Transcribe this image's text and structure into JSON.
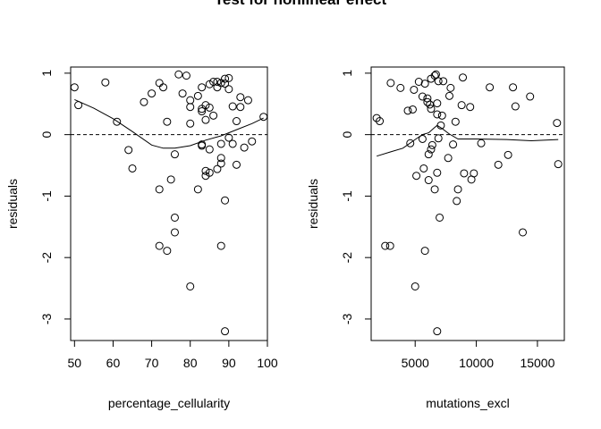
{
  "title": "Test for nonlinear effect",
  "chart_data": [
    {
      "type": "scatter",
      "xlabel": "percentage_cellularity",
      "ylabel": "residuals",
      "xlim": [
        49,
        100
      ],
      "ylim": [
        -3.35,
        1.1
      ],
      "xticks": [
        50,
        60,
        70,
        80,
        90,
        100
      ],
      "yticks": [
        1,
        0,
        -1,
        -2,
        -3
      ],
      "reference_line": 0,
      "points": [
        [
          50,
          0.77
        ],
        [
          51,
          0.48
        ],
        [
          58,
          0.85
        ],
        [
          61,
          0.21
        ],
        [
          64,
          -0.25
        ],
        [
          65,
          -0.55
        ],
        [
          68,
          0.53
        ],
        [
          70,
          0.67
        ],
        [
          72,
          0.84
        ],
        [
          73,
          0.77
        ],
        [
          72,
          -0.89
        ],
        [
          72,
          -1.81
        ],
        [
          74,
          -1.89
        ],
        [
          74,
          0.21
        ],
        [
          75,
          -0.73
        ],
        [
          76,
          -1.35
        ],
        [
          76,
          -1.59
        ],
        [
          76,
          -0.32
        ],
        [
          77,
          0.98
        ],
        [
          78,
          0.67
        ],
        [
          79,
          0.96
        ],
        [
          80,
          0.56
        ],
        [
          80,
          0.45
        ],
        [
          80,
          0.18
        ],
        [
          80,
          -2.47
        ],
        [
          82,
          0.63
        ],
        [
          82,
          -0.89
        ],
        [
          83,
          0.77
        ],
        [
          83,
          0.42
        ],
        [
          83,
          0.38
        ],
        [
          83,
          -0.16
        ],
        [
          83,
          -0.18
        ],
        [
          84,
          0.48
        ],
        [
          84,
          0.24
        ],
        [
          84,
          -0.59
        ],
        [
          84,
          -0.67
        ],
        [
          85,
          0.82
        ],
        [
          85,
          0.44
        ],
        [
          85,
          -0.24
        ],
        [
          85,
          -0.62
        ],
        [
          86,
          0.86
        ],
        [
          86,
          0.31
        ],
        [
          87,
          0.86
        ],
        [
          87,
          0.77
        ],
        [
          87,
          -0.56
        ],
        [
          88,
          0.84
        ],
        [
          88,
          -0.15
        ],
        [
          88,
          -0.38
        ],
        [
          88,
          -0.47
        ],
        [
          88,
          -1.81
        ],
        [
          89,
          0.91
        ],
        [
          89,
          0.83
        ],
        [
          89,
          -1.07
        ],
        [
          89,
          -3.2
        ],
        [
          90,
          0.92
        ],
        [
          90,
          0.74
        ],
        [
          90,
          -0.05
        ],
        [
          91,
          0.46
        ],
        [
          91,
          -0.15
        ],
        [
          92,
          -0.49
        ],
        [
          92,
          0.22
        ],
        [
          93,
          0.61
        ],
        [
          93,
          0.45
        ],
        [
          94,
          -0.21
        ],
        [
          95,
          0.56
        ],
        [
          96,
          -0.11
        ],
        [
          99,
          0.29
        ]
      ],
      "smooth": [
        [
          50,
          0.57
        ],
        [
          55,
          0.43
        ],
        [
          60,
          0.26
        ],
        [
          65,
          0.05
        ],
        [
          70,
          -0.17
        ],
        [
          73,
          -0.22
        ],
        [
          76,
          -0.22
        ],
        [
          80,
          -0.18
        ],
        [
          84,
          -0.09
        ],
        [
          88,
          -0.02
        ],
        [
          92,
          0.08
        ],
        [
          96,
          0.18
        ],
        [
          99,
          0.27
        ]
      ]
    },
    {
      "type": "scatter",
      "xlabel": "mutations_excl",
      "ylabel": "residuals",
      "xlim": [
        1400,
        17200
      ],
      "ylim": [
        -3.35,
        1.1
      ],
      "xticks": [
        5000,
        10000,
        15000
      ],
      "yticks": [
        1,
        0,
        -1,
        -2,
        -3
      ],
      "reference_line": 0,
      "points": [
        [
          1850,
          0.27
        ],
        [
          2100,
          0.22
        ],
        [
          2550,
          -1.81
        ],
        [
          2950,
          -1.81
        ],
        [
          3000,
          0.84
        ],
        [
          3800,
          0.76
        ],
        [
          4400,
          0.39
        ],
        [
          4600,
          -0.14
        ],
        [
          4800,
          0.41
        ],
        [
          4900,
          0.73
        ],
        [
          5100,
          -0.67
        ],
        [
          5000,
          -2.47
        ],
        [
          5300,
          0.86
        ],
        [
          5600,
          0.62
        ],
        [
          5600,
          -0.07
        ],
        [
          5700,
          -0.55
        ],
        [
          5800,
          -1.89
        ],
        [
          5800,
          0.83
        ],
        [
          6000,
          0.59
        ],
        [
          6000,
          0.53
        ],
        [
          6100,
          -0.32
        ],
        [
          6100,
          -0.74
        ],
        [
          6200,
          0.49
        ],
        [
          6300,
          0.91
        ],
        [
          6300,
          0.42
        ],
        [
          6300,
          -0.24
        ],
        [
          6400,
          -0.17
        ],
        [
          6600,
          0.96
        ],
        [
          6600,
          -0.89
        ],
        [
          6700,
          0.98
        ],
        [
          6800,
          -3.2
        ],
        [
          6800,
          -0.62
        ],
        [
          6800,
          0.51
        ],
        [
          6800,
          0.33
        ],
        [
          6900,
          -0.06
        ],
        [
          6900,
          0.87
        ],
        [
          7000,
          -1.35
        ],
        [
          7100,
          0.15
        ],
        [
          7200,
          0.31
        ],
        [
          7300,
          0.87
        ],
        [
          7700,
          -0.38
        ],
        [
          7900,
          0.76
        ],
        [
          7800,
          0.63
        ],
        [
          8100,
          -0.16
        ],
        [
          8300,
          0.21
        ],
        [
          8400,
          -1.08
        ],
        [
          8500,
          -0.89
        ],
        [
          8800,
          0.48
        ],
        [
          8900,
          0.93
        ],
        [
          9000,
          -0.63
        ],
        [
          9600,
          -0.73
        ],
        [
          9500,
          0.45
        ],
        [
          9800,
          -0.63
        ],
        [
          10400,
          -0.14
        ],
        [
          11100,
          0.77
        ],
        [
          11800,
          -0.49
        ],
        [
          12600,
          -0.33
        ],
        [
          13000,
          0.77
        ],
        [
          13200,
          0.46
        ],
        [
          13800,
          -1.59
        ],
        [
          14400,
          0.62
        ],
        [
          16600,
          0.19
        ],
        [
          16700,
          -0.48
        ]
      ],
      "smooth": [
        [
          1850,
          -0.35
        ],
        [
          3000,
          -0.28
        ],
        [
          4000,
          -0.22
        ],
        [
          5000,
          -0.08
        ],
        [
          5600,
          0.0
        ],
        [
          6100,
          0.03
        ],
        [
          6500,
          0.1
        ],
        [
          6800,
          0.15
        ],
        [
          7200,
          0.1
        ],
        [
          7800,
          0.01
        ],
        [
          8500,
          -0.07
        ],
        [
          10000,
          -0.07
        ],
        [
          12500,
          -0.08
        ],
        [
          14500,
          -0.1
        ],
        [
          16700,
          -0.08
        ]
      ]
    }
  ]
}
